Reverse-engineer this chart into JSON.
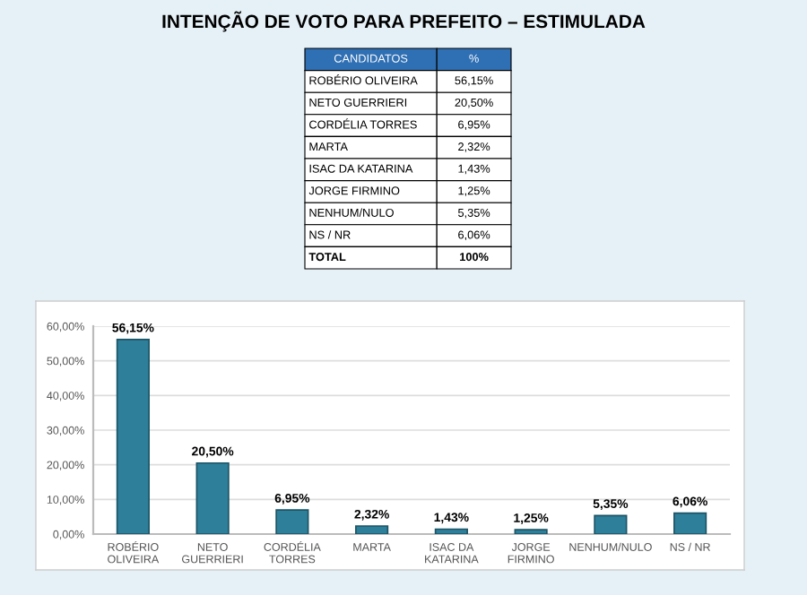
{
  "chart_data": {
    "type": "bar",
    "title": "INTENÇÃO DE VOTO PARA PREFEITO – ESTIMULADA",
    "categories": [
      "ROBÉRIO OLIVEIRA",
      "NETO GUERRIERI",
      "CORDÉLIA TORRES",
      "MARTA",
      "ISAC DA KATARINA",
      "JORGE FIRMINO",
      "NENHUM/NULO",
      "NS / NR"
    ],
    "values": [
      56.15,
      20.5,
      6.95,
      2.32,
      1.43,
      1.25,
      5.35,
      6.06
    ],
    "value_labels": [
      "56,15%",
      "20,50%",
      "6,95%",
      "2,32%",
      "1,43%",
      "1,25%",
      "5,35%",
      "6,06%"
    ],
    "color": "#2e7f9a",
    "ylim": [
      0,
      60
    ],
    "yticks": [
      {
        "value": 0,
        "label": "0,00%"
      },
      {
        "value": 10,
        "label": "10,00%"
      },
      {
        "value": 20,
        "label": "20,00%"
      },
      {
        "value": 30,
        "label": "30,00%"
      },
      {
        "value": 40,
        "label": "40,00%"
      },
      {
        "value": 50,
        "label": "50,00%"
      },
      {
        "value": 60,
        "label": "60,00%"
      }
    ],
    "grid": "y",
    "annotations": [
      "CANDIDATOS",
      "%",
      "TOTAL",
      "100%"
    ]
  }
}
